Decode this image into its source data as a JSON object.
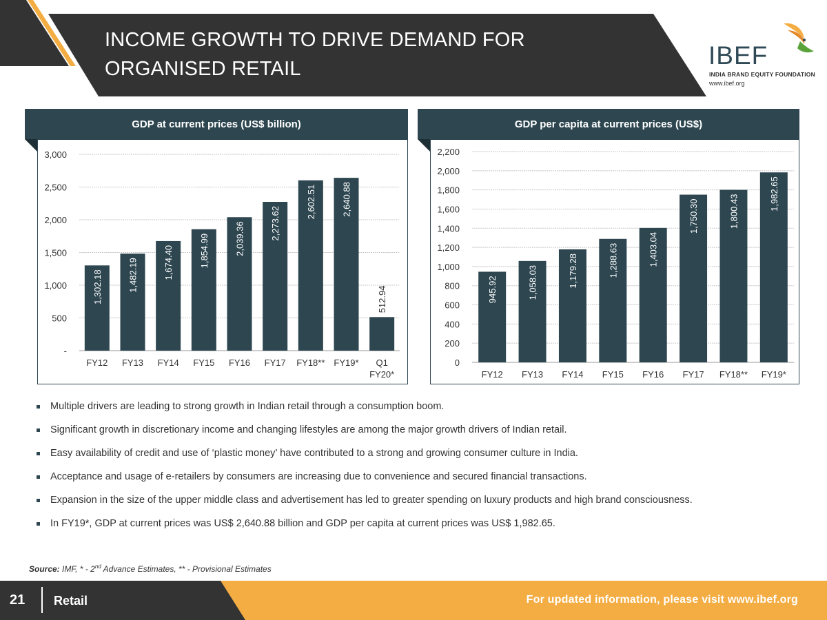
{
  "header": {
    "title_line1": "INCOME GROWTH TO DRIVE DEMAND FOR",
    "title_line2": "ORGANISED RETAIL"
  },
  "logo": {
    "brand": "IBEF",
    "subtitle": "INDIA BRAND EQUITY FOUNDATION",
    "url": "www.ibef.org"
  },
  "colors": {
    "dark": "#2d4650",
    "header_dark": "#333333",
    "accent": "#f4ad42",
    "bar": "#2d4650"
  },
  "chart_data": [
    {
      "type": "bar",
      "title": "GDP at current prices (US$ billion)",
      "categories": [
        "FY12",
        "FY13",
        "FY14",
        "FY15",
        "FY16",
        "FY17",
        "FY18**",
        "FY19*",
        "Q1 FY20*"
      ],
      "values": [
        1302.18,
        1482.19,
        1674.4,
        1854.99,
        2039.36,
        2273.62,
        2602.51,
        2640.88,
        512.94
      ],
      "value_labels": [
        "1,302.18",
        "1,482.19",
        "1,674.40",
        "1,854.99",
        "2,039.36",
        "2,273.62",
        "2,602.51",
        "2,640.88",
        "512.94"
      ],
      "yticks": [
        0,
        500,
        1000,
        1500,
        2000,
        2500,
        3000
      ],
      "ytick_labels": [
        "-",
        "500",
        "1,000",
        "1,500",
        "2,000",
        "2,500",
        "3,000"
      ],
      "ylim": [
        0,
        3000
      ],
      "xlabel": "",
      "ylabel": "",
      "grid": true
    },
    {
      "type": "bar",
      "title": "GDP per capita at current prices (US$)",
      "categories": [
        "FY12",
        "FY13",
        "FY14",
        "FY15",
        "FY16",
        "FY17",
        "FY18**",
        "FY19*"
      ],
      "values": [
        945.92,
        1058.03,
        1179.28,
        1288.63,
        1403.04,
        1750.3,
        1800.43,
        1982.65
      ],
      "value_labels": [
        "945.92",
        "1,058.03",
        "1,179.28",
        "1,288.63",
        "1,403.04",
        "1,750.30",
        "1,800.43",
        "1,982.65"
      ],
      "yticks": [
        0,
        200,
        400,
        600,
        800,
        1000,
        1200,
        1400,
        1600,
        1800,
        2000,
        2200
      ],
      "ytick_labels": [
        "0",
        "200",
        "400",
        "600",
        "800",
        "1,000",
        "1,200",
        "1,400",
        "1,600",
        "1,800",
        "2,000",
        "2,200"
      ],
      "ylim": [
        0,
        2200
      ],
      "xlabel": "",
      "ylabel": "",
      "grid": true
    }
  ],
  "bullets": [
    "Multiple drivers are leading to strong growth in Indian retail through a consumption boom.",
    "Significant growth in discretionary income and changing lifestyles are among the major growth drivers of Indian retail.",
    "Easy availability of credit and use of ‘plastic money’ have contributed to a strong and growing consumer culture in India.",
    "Acceptance and usage of e-retailers by consumers are increasing due to convenience and secured financial transactions.",
    "Expansion in the size of the upper middle class and advertisement has led to greater spending on luxury products and high brand consciousness.",
    "In FY19*, GDP at current prices was US$ 2,640.88 billion and GDP per capita at current prices was US$ 1,982.65."
  ],
  "source": {
    "label": "Source:",
    "text_a": " IMF, * - 2",
    "sup": "nd",
    "text_b": " Advance Estimates, ** - Provisional Estimates"
  },
  "footer": {
    "page_number": "21",
    "section": "Retail",
    "link_text": "For updated information, please visit www.ibef.org"
  }
}
